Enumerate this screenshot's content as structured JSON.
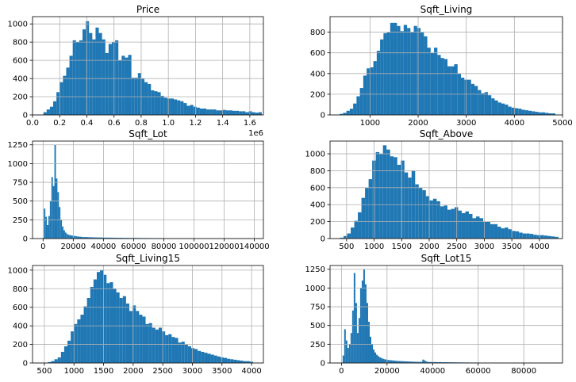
{
  "chart_data": [
    {
      "type": "bar",
      "title": "Price",
      "xlim": [
        0,
        1700000
      ],
      "ylim": [
        0,
        1080
      ],
      "x_ticks": [
        0,
        200000,
        400000,
        600000,
        800000,
        1000000,
        1200000,
        1400000,
        1600000
      ],
      "x_tick_labels": [
        "0.0",
        "0.2",
        "0.4",
        "0.6",
        "0.8",
        "1.0",
        "1.2",
        "1.4",
        "1.6"
      ],
      "x_offset_label": "1e6",
      "y_ticks": [
        0,
        200,
        400,
        600,
        800,
        1000
      ],
      "y_tick_labels": [
        "0",
        "200",
        "400",
        "600",
        "800",
        "1000"
      ],
      "bin_edges_start": 80000,
      "bin_width": 24000,
      "values": [
        30,
        60,
        90,
        150,
        250,
        360,
        430,
        520,
        650,
        820,
        800,
        820,
        940,
        1030,
        900,
        830,
        960,
        900,
        830,
        680,
        780,
        800,
        820,
        600,
        650,
        630,
        660,
        410,
        410,
        460,
        400,
        360,
        340,
        270,
        260,
        250,
        210,
        190,
        180,
        180,
        170,
        160,
        150,
        130,
        100,
        110,
        90,
        80,
        70,
        70,
        60,
        60,
        60,
        50,
        50,
        55,
        50,
        50,
        45,
        45,
        40,
        40,
        30,
        40,
        30,
        25,
        30
      ],
      "grid": true
    },
    {
      "type": "bar",
      "title": "Sqft_Living",
      "xlim": [
        170,
        5000
      ],
      "ylim": [
        0,
        950
      ],
      "x_ticks": [
        1000,
        2000,
        3000,
        4000,
        5000
      ],
      "x_tick_labels": [
        "1000",
        "2000",
        "3000",
        "4000",
        "5000"
      ],
      "y_ticks": [
        0,
        200,
        400,
        600,
        800
      ],
      "y_tick_labels": [
        "0",
        "200",
        "400",
        "600",
        "800"
      ],
      "bin_edges_start": 370,
      "bin_width": 70,
      "values": [
        10,
        20,
        40,
        60,
        110,
        180,
        260,
        380,
        450,
        460,
        520,
        620,
        730,
        790,
        800,
        890,
        890,
        860,
        810,
        870,
        840,
        800,
        860,
        840,
        800,
        760,
        650,
        600,
        650,
        580,
        550,
        540,
        470,
        470,
        490,
        400,
        360,
        340,
        340,
        300,
        280,
        240,
        210,
        220,
        190,
        160,
        140,
        120,
        110,
        100,
        80,
        70,
        65,
        60,
        50,
        45,
        40,
        35,
        30,
        25,
        25,
        20,
        15,
        15
      ],
      "grid": true
    },
    {
      "type": "bar",
      "title": "Sqft_Lot",
      "xlim": [
        -7000,
        146000
      ],
      "ylim": [
        0,
        1300
      ],
      "x_ticks": [
        0,
        20000,
        40000,
        60000,
        80000,
        100000,
        120000,
        140000
      ],
      "x_tick_labels": [
        "0",
        "20000",
        "40000",
        "60000",
        "80000",
        "100000",
        "120000",
        "140000"
      ],
      "y_ticks": [
        0,
        250,
        500,
        750,
        1000,
        1250
      ],
      "y_tick_labels": [
        "0",
        "250",
        "500",
        "750",
        "1000",
        "1250"
      ],
      "bin_edges_start": 500,
      "bin_width": 1000,
      "values": [
        400,
        290,
        180,
        300,
        500,
        820,
        700,
        1250,
        800,
        620,
        420,
        250,
        160,
        110,
        80,
        60,
        50,
        45,
        40,
        38,
        35,
        30,
        28,
        25,
        24,
        22,
        20,
        20,
        20,
        18,
        18,
        17,
        16,
        16,
        15,
        15,
        14,
        14,
        14,
        13,
        13,
        12,
        12,
        12,
        12,
        11,
        11,
        11,
        10,
        10,
        10,
        10,
        9,
        9,
        9,
        9,
        8,
        8,
        8,
        8,
        8,
        8,
        8,
        7,
        7,
        7,
        7,
        7,
        7,
        7,
        6,
        6,
        6,
        6,
        6,
        6,
        6,
        6,
        6,
        5,
        5,
        5,
        5,
        5,
        5,
        5,
        5,
        5,
        5,
        5,
        4,
        4,
        4,
        4,
        4,
        4,
        4,
        4,
        4,
        4,
        4,
        4,
        4,
        4,
        3,
        3,
        3,
        3,
        3,
        3,
        3,
        3,
        3,
        3,
        3,
        3,
        3,
        3,
        3,
        3,
        3,
        3,
        2,
        2,
        2,
        2,
        2,
        2,
        2,
        2,
        2,
        2,
        2,
        2,
        2,
        2,
        2,
        2
      ],
      "grid": true
    },
    {
      "type": "bar",
      "title": "Sqft_Above",
      "xlim": [
        200,
        4420
      ],
      "ylim": [
        0,
        1150
      ],
      "x_ticks": [
        500,
        1000,
        1500,
        2000,
        2500,
        3000,
        3500,
        4000
      ],
      "x_tick_labels": [
        "500",
        "1000",
        "1500",
        "2000",
        "2500",
        "3000",
        "3500",
        "4000"
      ],
      "y_ticks": [
        0,
        200,
        400,
        600,
        800,
        1000
      ],
      "y_tick_labels": [
        "0",
        "200",
        "400",
        "600",
        "800",
        "1000"
      ],
      "bin_edges_start": 380,
      "bin_width": 65,
      "values": [
        10,
        30,
        60,
        130,
        210,
        310,
        480,
        600,
        700,
        920,
        1020,
        1000,
        1100,
        1050,
        970,
        960,
        870,
        920,
        780,
        720,
        800,
        640,
        600,
        570,
        500,
        450,
        470,
        440,
        380,
        390,
        340,
        350,
        370,
        330,
        300,
        320,
        290,
        240,
        260,
        240,
        200,
        200,
        170,
        170,
        140,
        120,
        130,
        110,
        90,
        85,
        70,
        60,
        60,
        55,
        45,
        40,
        40,
        35,
        30,
        25,
        20
      ],
      "grid": true
    },
    {
      "type": "bar",
      "title": "Sqft_Living15",
      "xlim": [
        300,
        4200
      ],
      "ylim": [
        0,
        1050
      ],
      "x_ticks": [
        500,
        1000,
        1500,
        2000,
        2500,
        3000,
        3500,
        4000
      ],
      "x_tick_labels": [
        "500",
        "1000",
        "1500",
        "2000",
        "2500",
        "3000",
        "3500",
        "4000"
      ],
      "y_ticks": [
        0,
        200,
        400,
        600,
        800,
        1000
      ],
      "y_tick_labels": [
        "0",
        "200",
        "400",
        "600",
        "800",
        "1000"
      ],
      "bin_edges_start": 560,
      "bin_width": 55,
      "values": [
        10,
        20,
        40,
        60,
        120,
        180,
        240,
        340,
        420,
        470,
        520,
        610,
        700,
        820,
        900,
        980,
        1000,
        950,
        860,
        870,
        800,
        760,
        700,
        720,
        640,
        560,
        620,
        560,
        520,
        500,
        420,
        430,
        380,
        360,
        380,
        340,
        300,
        310,
        280,
        270,
        220,
        230,
        200,
        180,
        160,
        150,
        130,
        120,
        110,
        100,
        90,
        80,
        70,
        60,
        55,
        45,
        40,
        35,
        30,
        25,
        20,
        20,
        15
      ],
      "grid": true
    },
    {
      "type": "bar",
      "title": "Sqft_Lot15",
      "xlim": [
        -5000,
        97000
      ],
      "ylim": [
        0,
        1300
      ],
      "x_ticks": [
        0,
        20000,
        40000,
        60000,
        80000
      ],
      "x_tick_labels": [
        "0",
        "20000",
        "40000",
        "60000",
        "80000"
      ],
      "y_ticks": [
        0,
        250,
        500,
        750,
        1000,
        1250
      ],
      "y_tick_labels": [
        "0",
        "250",
        "500",
        "750",
        "1000",
        "1250"
      ],
      "bin_edges_start": 500,
      "bin_width": 700,
      "values": [
        100,
        450,
        300,
        200,
        250,
        400,
        700,
        1200,
        800,
        400,
        600,
        1000,
        1100,
        1250,
        1050,
        800,
        550,
        350,
        250,
        180,
        140,
        110,
        90,
        75,
        65,
        55,
        50,
        45,
        40,
        38,
        36,
        34,
        32,
        30,
        28,
        26,
        25,
        24,
        23,
        22,
        21,
        20,
        19,
        18,
        17,
        16,
        16,
        15,
        15,
        14,
        45,
        35,
        20,
        14,
        13,
        13,
        12,
        12,
        12,
        11,
        11,
        11,
        10,
        10,
        10,
        10,
        9,
        9,
        9,
        9,
        8,
        8,
        8,
        8,
        7,
        7,
        7,
        7,
        7,
        6,
        6,
        6,
        6,
        6,
        6,
        5,
        5,
        5,
        5,
        5,
        5,
        5,
        4,
        4,
        4,
        4,
        4,
        4,
        4,
        4,
        4,
        3,
        3,
        3,
        3,
        3,
        3,
        3,
        3,
        3,
        3,
        3,
        3,
        3,
        3,
        3,
        3,
        3,
        2,
        2,
        2,
        2,
        2,
        2,
        2,
        2,
        2,
        2,
        2,
        2,
        2,
        2,
        2
      ],
      "grid": true
    }
  ],
  "colors": {
    "bar": "#1f77b4",
    "grid": "#b0b0b0",
    "axis": "#000000"
  }
}
